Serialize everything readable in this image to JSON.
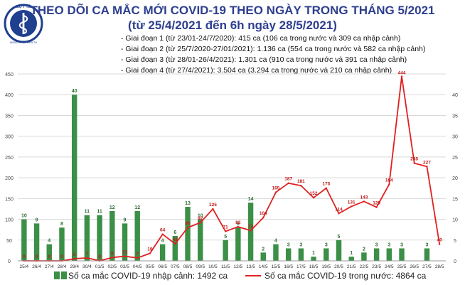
{
  "header": {
    "ministry_name": "BỘ Y TẾ",
    "ministry_name_en": "MINISTRY OF HEALTH",
    "title_line1": "THEO DÕI CA MẮC MỚI COVID-19 THEO NGÀY TRONG THÁNG 5/2021",
    "title_line2": "(từ 25/4/2021 đến 6h ngày 28/5/2021)"
  },
  "notes": [
    "- Giai đoạn 1 (từ 23/01-24/7/2020): 415 ca (106 ca trong nước và 309 ca nhập cảnh)",
    "- Giai đoạn 2 (từ 25/7/2020-27/01/2021): 1.136 ca (554 ca trong nước và 582 ca nhập cảnh)",
    "- Giai đoạn 3 (từ 28/01-26/4/2021): 1.301 ca (910 ca trong nước và 391 ca nhập cảnh)",
    "- Giai đoạn 4 (từ 27/4/2021): 3.504 ca (3.294 ca trong nước và 210 ca nhập cảnh)"
  ],
  "legend": {
    "bars": "Số ca mắc COVID-19 nhập cảnh: 1492 ca",
    "line": "Số ca mắc COVID-19 trong nước: 4864 ca"
  },
  "colors": {
    "title": "#2e3f8f",
    "bars": "#3b8f46",
    "line": "#e02020",
    "grid": "#d9d9d9"
  },
  "chart_data": {
    "type": "bar+line",
    "categories": [
      "25/4",
      "26/4",
      "27/4",
      "28/4",
      "29/4",
      "30/4",
      "01/5",
      "02/5",
      "03/5",
      "04/5",
      "05/5",
      "06/5",
      "07/5",
      "08/5",
      "09/5",
      "10/5",
      "11/5",
      "12/5",
      "13/5",
      "14/5",
      "15/5",
      "16/5",
      "17/5",
      "18/5",
      "19/5",
      "20/5",
      "21/5",
      "22/5",
      "23/5",
      "24/5",
      "25/5",
      "26/5",
      "27/5",
      "28/5"
    ],
    "series": [
      {
        "name": "Số ca mắc COVID-19 nhập cảnh: 1492 ca",
        "type": "bar",
        "axis": "right",
        "values": [
          10,
          9,
          4,
          8,
          40,
          11,
          11,
          12,
          9,
          12,
          0,
          4,
          6,
          13,
          10,
          0,
          5,
          8,
          14,
          2,
          4,
          3,
          3,
          1,
          3,
          5,
          1,
          2,
          3,
          3,
          3,
          0,
          3,
          0
        ]
      },
      {
        "name": "Số ca mắc COVID-19 trong nước: 4864 ca",
        "type": "line",
        "axis": "left",
        "values": [
          0,
          0,
          0,
          0,
          5,
          7,
          0,
          8,
          11,
          7,
          18,
          64,
          41,
          80,
          92,
          125,
          71,
          82,
          73,
          104,
          165,
          187,
          181,
          152,
          175,
          114,
          131,
          143,
          129,
          184,
          444,
          235,
          227,
          40
        ]
      }
    ],
    "bar_labels": [
      "10",
      "9",
      "4",
      "8",
      "40",
      "11",
      "11",
      "12",
      "9",
      "12",
      "",
      "4",
      "6",
      "13",
      "10",
      "",
      "5",
      "8",
      "14",
      "2",
      "4",
      "3",
      "3",
      "1",
      "3",
      "5",
      "1",
      "2",
      "3",
      "3",
      "3",
      "",
      "3",
      ""
    ],
    "line_labels": [
      "0",
      "0",
      "0",
      "0",
      "5",
      "7",
      "0",
      "8",
      "11",
      "7",
      "18",
      "64",
      "41",
      "80",
      "92",
      "125",
      "71",
      "82",
      "73",
      "104",
      "165",
      "187",
      "181",
      "152",
      "175",
      "114",
      "131",
      "143",
      "129",
      "184",
      "444",
      "235",
      "227",
      "40"
    ],
    "y_left": {
      "min": 0,
      "max": 450,
      "ticks": [
        "0",
        "50",
        "100",
        "150",
        "200",
        "250",
        "300",
        "350",
        "400",
        "450"
      ]
    },
    "y_right": {
      "min": 0,
      "max": 45,
      "ticks": [
        "0",
        "5",
        "10",
        "15",
        "20",
        "25",
        "30",
        "35",
        "40"
      ]
    },
    "grid": true,
    "legend_position": "bottom"
  }
}
